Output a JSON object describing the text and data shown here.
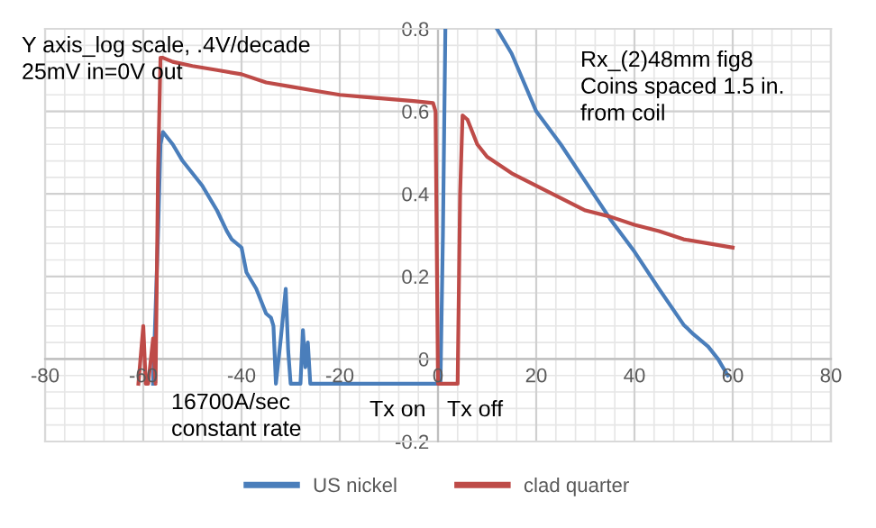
{
  "chart_data": {
    "type": "line",
    "annotations": [
      "Y axis_log scale, .4V/decade\n25mV in=0V out",
      "16700A/sec\nconstant rate",
      "Tx on",
      "Tx off",
      "Rx_(2)48mm fig8\nCoins spaced 1.5 in.\nfrom coil"
    ],
    "xlim": [
      -80,
      80
    ],
    "xticks": [
      -80,
      -60,
      -40,
      -20,
      0,
      20,
      40,
      60,
      80
    ],
    "ylim": [
      -0.2,
      0.8
    ],
    "yticks": [
      -0.2,
      0,
      0.2,
      0.4,
      0.6,
      0.8
    ],
    "grid": true,
    "legend": "bottom",
    "series": [
      {
        "name": "US nickel",
        "color": "#4a7ebb",
        "x": [
          -58,
          -57,
          -56.5,
          -56,
          -54,
          -52,
          -50,
          -48,
          -46,
          -45,
          -43,
          -42,
          -40,
          -39,
          -37,
          -36,
          -35,
          -34,
          -33.5,
          -33,
          -32,
          -31,
          -30.5,
          -30,
          -29,
          -28,
          -27.5,
          -27,
          -26.5,
          -26,
          -25,
          -20,
          -10,
          0,
          0.5,
          1,
          1.5,
          10,
          12,
          15,
          20,
          25,
          30,
          35,
          40,
          45,
          50,
          52,
          55,
          57,
          58,
          59
        ],
        "values": [
          -0.06,
          0.3,
          0.52,
          0.55,
          0.52,
          0.48,
          0.45,
          0.42,
          0.38,
          0.36,
          0.31,
          0.29,
          0.27,
          0.21,
          0.17,
          0.14,
          0.11,
          0.1,
          0.08,
          -0.06,
          0.05,
          0.17,
          0.02,
          -0.06,
          -0.06,
          -0.06,
          0.07,
          -0.02,
          0.04,
          -0.06,
          -0.06,
          -0.06,
          -0.06,
          -0.06,
          -0.06,
          0.3,
          0.8,
          null,
          0.8,
          0.74,
          0.6,
          0.52,
          0.43,
          0.34,
          0.26,
          0.17,
          0.083,
          0.06,
          0.03,
          0.0,
          -0.02,
          -0.04
        ]
      },
      {
        "name": "clad quarter",
        "color": "#be4b48",
        "x": [
          -61,
          -60,
          -59.5,
          -59,
          -58,
          -57.5,
          -57,
          -56.5,
          -56,
          -54,
          -50,
          -45,
          -40,
          -35,
          -30,
          -25,
          -20,
          -15,
          -10,
          -5,
          -1,
          -0.5,
          0,
          2,
          4,
          4.5,
          5,
          6,
          8,
          10,
          15,
          20,
          25,
          30,
          35,
          40,
          45,
          50,
          55,
          60
        ],
        "values": [
          -0.06,
          0.08,
          -0.06,
          -0.06,
          0.05,
          -0.06,
          0.45,
          0.73,
          0.73,
          0.72,
          0.71,
          0.7,
          0.69,
          0.67,
          0.66,
          0.65,
          0.64,
          0.635,
          0.63,
          0.625,
          0.62,
          0.6,
          -0.06,
          -0.06,
          -0.06,
          0.4,
          0.59,
          0.58,
          0.52,
          0.49,
          0.45,
          0.42,
          0.39,
          0.36,
          0.345,
          0.325,
          0.31,
          0.29,
          0.28,
          0.27
        ]
      }
    ]
  }
}
